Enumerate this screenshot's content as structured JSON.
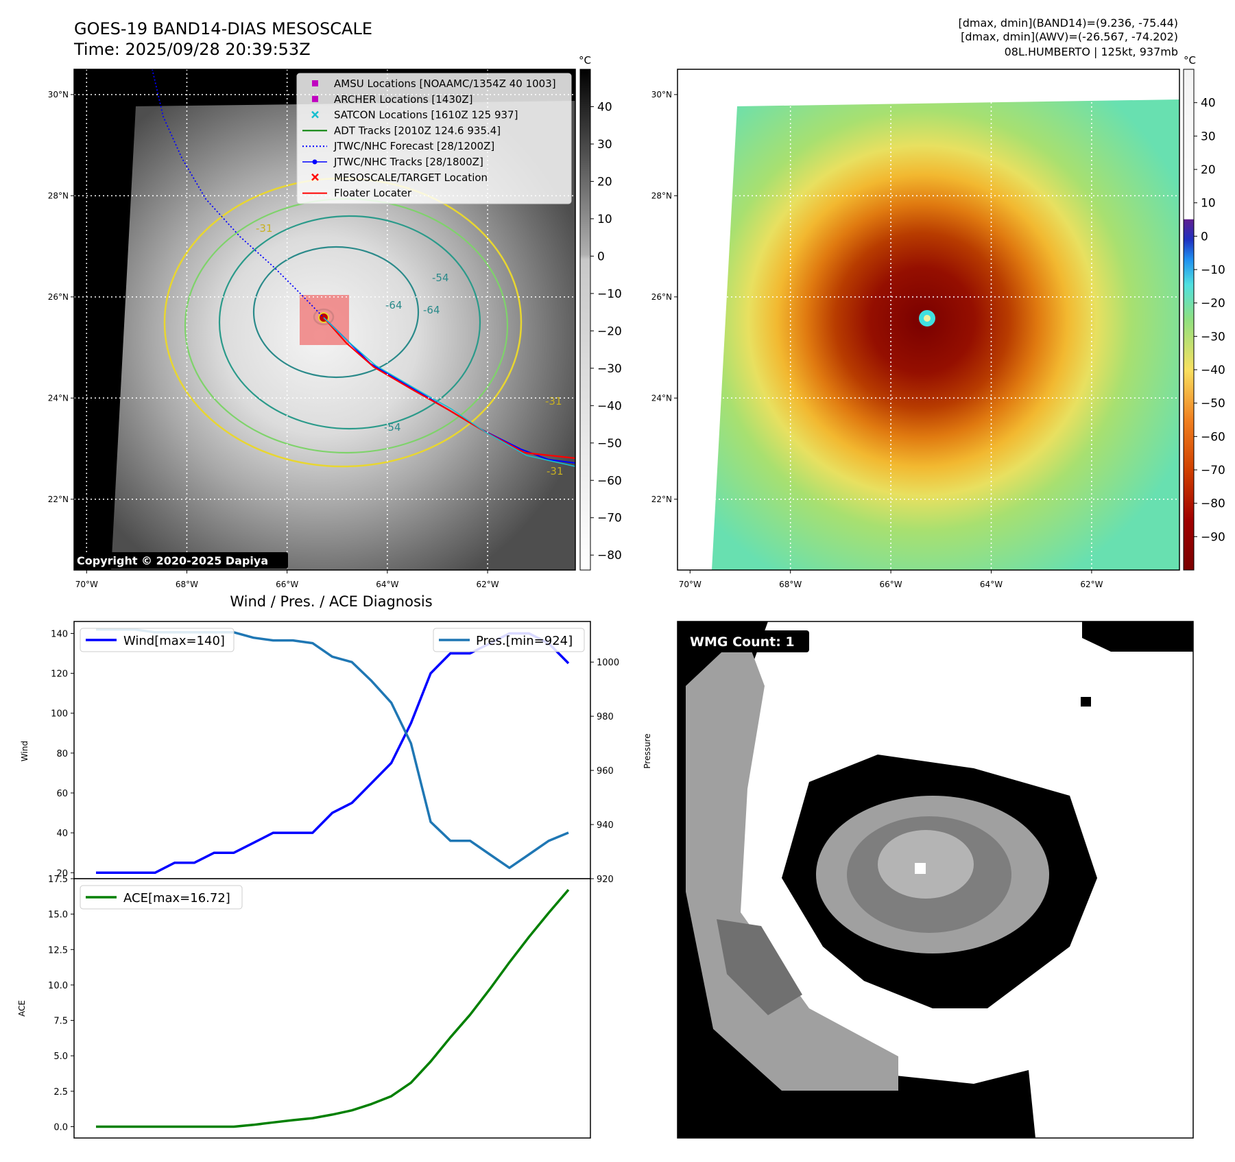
{
  "header": {
    "title_line1": "GOES-19 BAND14-DIAS MESOSCALE",
    "title_line2": "Time: 2025/09/28 20:39:53Z",
    "right_line1": "[dmax, dmin](BAND14)=(9.236, -75.44)",
    "right_line2": "[dmax, dmin](AWV)=(-26.567, -74.202)",
    "right_line3": "08L.HUMBERTO | 125kt, 937mb"
  },
  "map_axes": {
    "lat_labels": [
      "30°N",
      "28°N",
      "26°N",
      "24°N",
      "22°N"
    ],
    "lon_labels": [
      "70°W",
      "68°W",
      "66°W",
      "64°W",
      "62°W"
    ],
    "lat_values": [
      30,
      28,
      26,
      24,
      22
    ],
    "lon_values": [
      -70,
      -68,
      -66,
      -64,
      -62
    ],
    "lon_range": [
      -70.25,
      -60.25
    ],
    "lat_range": [
      20.6,
      30.5
    ]
  },
  "colorbar_left": {
    "unit": "°C",
    "ticks": [
      "40",
      "30",
      "20",
      "10",
      "0",
      "−10",
      "−20",
      "−30",
      "−40",
      "−50",
      "−60",
      "−70",
      "−80"
    ],
    "tick_values": [
      40,
      30,
      20,
      10,
      0,
      -10,
      -20,
      -30,
      -40,
      -50,
      -60,
      -70,
      -80
    ],
    "range": [
      -84,
      50
    ]
  },
  "colorbar_right": {
    "unit": "°C",
    "ticks": [
      "40",
      "30",
      "20",
      "10",
      "0",
      "−10",
      "−20",
      "−30",
      "−40",
      "−50",
      "−60",
      "−70",
      "−80",
      "−90"
    ],
    "tick_values": [
      40,
      30,
      20,
      10,
      0,
      -10,
      -20,
      -30,
      -40,
      -50,
      -60,
      -70,
      -80,
      -90
    ],
    "range": [
      -100,
      50
    ]
  },
  "legend": {
    "items": [
      {
        "label": "AMSU Locations [NOAAMC/1354Z 40 1003]",
        "color": "#c000c0",
        "kind": "square"
      },
      {
        "label": "ARCHER Locations [1430Z]",
        "color": "#c000c0",
        "kind": "square"
      },
      {
        "label": "SATCON Locations [1610Z 125 937]",
        "color": "#17becf",
        "kind": "x"
      },
      {
        "label": "ADT Tracks [2010Z 124.6 935.4]",
        "color": "#008000",
        "kind": "line"
      },
      {
        "label": "JTWC/NHC Forecast [28/1200Z]",
        "color": "#0000ff",
        "kind": "dotted"
      },
      {
        "label": "JTWC/NHC Tracks [28/1800Z]",
        "color": "#0000ff",
        "kind": "marker-line"
      },
      {
        "label": "MESOSCALE/TARGET Location",
        "color": "#ff0000",
        "kind": "x"
      },
      {
        "label": "Floater Locater",
        "color": "#ff0000",
        "kind": "line"
      }
    ]
  },
  "contour_labels": [
    "-31",
    "-54",
    "-64",
    "-64",
    "-54",
    "-31",
    "-31"
  ],
  "copyright": "Copyright © 2020-2025 Dapiya",
  "wmg": {
    "label": "WMG Count: 1"
  },
  "chart_data": [
    {
      "type": "line",
      "title": "Wind / Pres. / ACE Diagnosis",
      "x": [
        0,
        1,
        2,
        3,
        4,
        5,
        6,
        7,
        8,
        9,
        10,
        11,
        12,
        13,
        14,
        15,
        16,
        17,
        18,
        19,
        20,
        21,
        22,
        23,
        24
      ],
      "series": [
        {
          "name": "Wind[max=140]",
          "axis": "left",
          "color": "#0000ff",
          "values": [
            20,
            20,
            20,
            20,
            25,
            25,
            30,
            30,
            35,
            40,
            40,
            40,
            50,
            55,
            65,
            75,
            95,
            120,
            130,
            130,
            135,
            140,
            140,
            135,
            125
          ]
        },
        {
          "name": "Pres.[min=924]",
          "axis": "right",
          "color": "#1f77b4",
          "values": [
            1012,
            1012,
            1012,
            1011,
            1011,
            1011,
            1011,
            1011,
            1009,
            1008,
            1008,
            1007,
            1002,
            1000,
            993,
            985,
            970,
            941,
            934,
            934,
            929,
            924,
            929,
            934,
            937
          ]
        }
      ],
      "ylabel": "Wind",
      "ylim": [
        17,
        146
      ],
      "yticks": [
        20,
        40,
        60,
        80,
        100,
        120,
        140
      ],
      "y2label": "Pressure",
      "y2lim": [
        920,
        1015
      ],
      "y2ticks": [
        920,
        940,
        960,
        980,
        1000
      ]
    },
    {
      "type": "line",
      "title": "",
      "x": [
        0,
        1,
        2,
        3,
        4,
        5,
        6,
        7,
        8,
        9,
        10,
        11,
        12,
        13,
        14,
        15,
        16,
        17,
        18,
        19,
        20,
        21,
        22,
        23,
        24
      ],
      "series": [
        {
          "name": "ACE[max=16.72]",
          "color": "#008000",
          "values": [
            0,
            0,
            0,
            0,
            0,
            0,
            0,
            0,
            0.13,
            0.3,
            0.46,
            0.6,
            0.85,
            1.15,
            1.6,
            2.15,
            3.1,
            4.6,
            6.3,
            7.9,
            9.7,
            11.6,
            13.4,
            15.1,
            16.72
          ]
        }
      ],
      "ylabel": "ACE",
      "ylim": [
        -0.8,
        17.5
      ],
      "yticks": [
        "0.0",
        "2.5",
        "5.0",
        "7.5",
        "10.0",
        "12.5",
        "15.0",
        "17.5"
      ],
      "ytick_values": [
        0,
        2.5,
        5,
        7.5,
        10,
        12.5,
        15,
        17.5
      ]
    }
  ]
}
